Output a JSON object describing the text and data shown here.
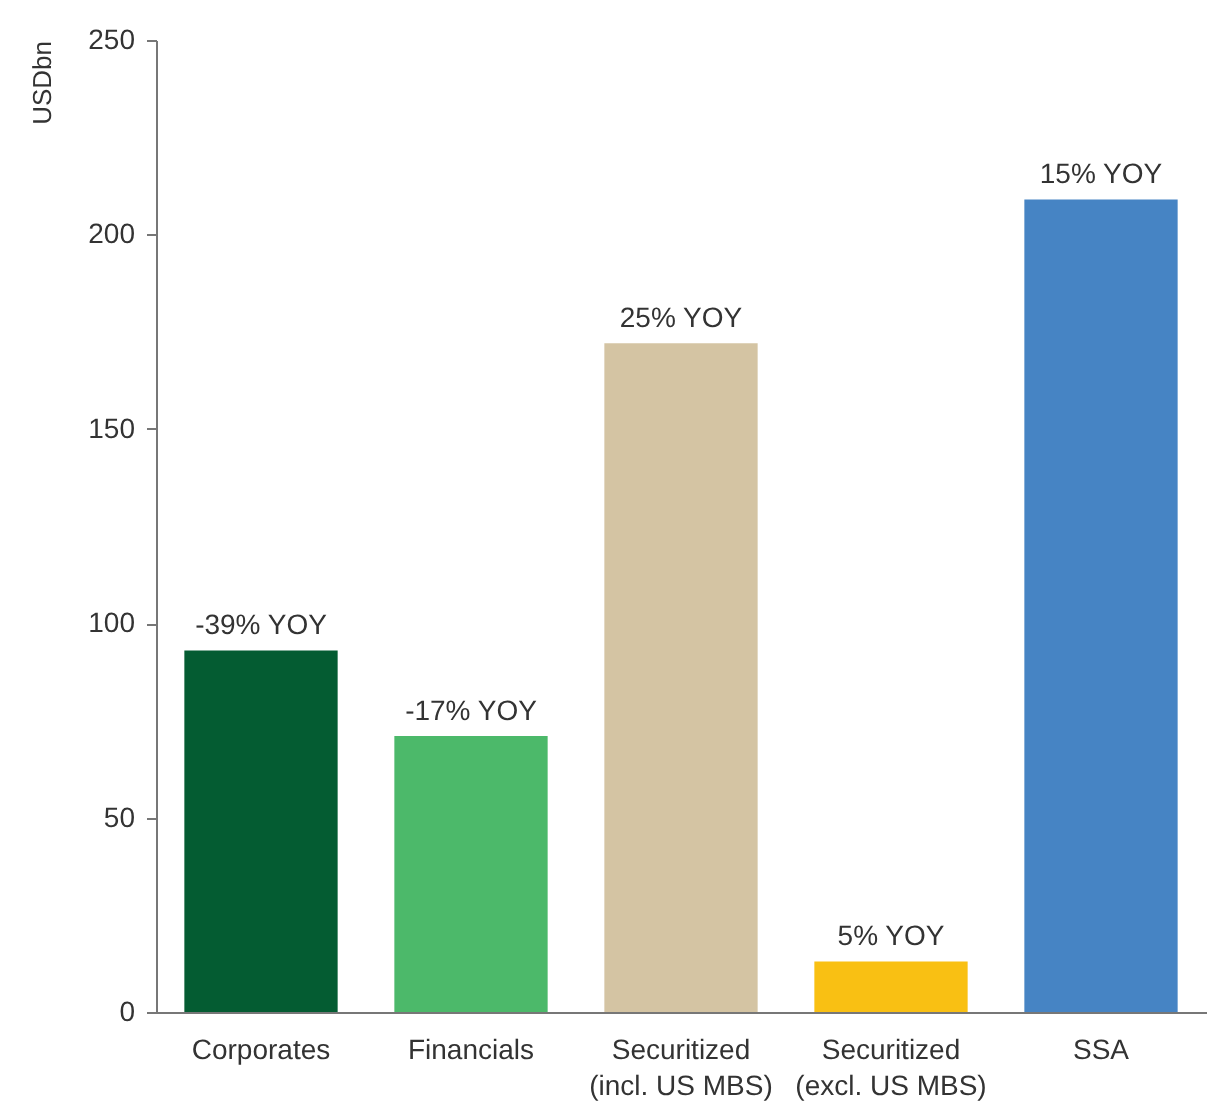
{
  "chart_data": {
    "type": "bar",
    "ylabel": "USDbn",
    "categories": [
      "Corporates",
      "Financials",
      "Securitized\n(incl. US MBS)",
      "Securitized\n(excl. US MBS)",
      "SSA"
    ],
    "values": [
      93,
      71,
      172,
      13,
      209
    ],
    "colors": [
      "#045c32",
      "#4cb96a",
      "#d4c4a3",
      "#f9c013",
      "#4684c4"
    ],
    "annotations": [
      {
        "text": "-39% YOY",
        "x": "Corporates",
        "y": 93
      },
      {
        "text": "-17% YOY",
        "x": "Financials",
        "y": 71
      },
      {
        "text": "25% YOY",
        "x": "Securitized\n(incl. US MBS)",
        "y": 172
      },
      {
        "text": "5% YOY",
        "x": "Securitized\n(excl. US MBS)",
        "y": 13
      },
      {
        "text": "15% YOY",
        "x": "SSA",
        "y": 209
      }
    ],
    "ylim": [
      0,
      250
    ],
    "yticks": [
      0,
      50,
      100,
      150,
      200,
      250
    ],
    "grid": false,
    "legend": false
  }
}
